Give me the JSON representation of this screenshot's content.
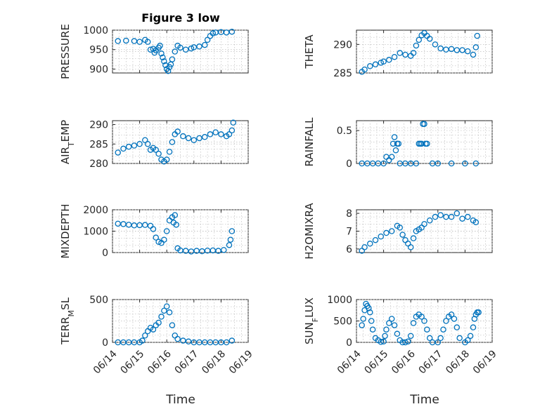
{
  "title": "Figure 3 low",
  "marker_color": "#0072BD",
  "xlabel": "Time",
  "x_ticks": [
    "06/14",
    "06/15",
    "06/16",
    "06/17",
    "06/18",
    "06/19"
  ],
  "chart_data": [
    {
      "type": "scatter",
      "ylabel": "PRESSURE",
      "ylim": [
        890,
        1000
      ],
      "yticks": [
        "900",
        "950",
        "1000"
      ],
      "ytick_values": [
        900,
        950,
        1000
      ],
      "grid": true,
      "x_unit": "days since 06/14",
      "x": [
        0.2,
        0.5,
        0.8,
        1.0,
        1.2,
        1.3,
        1.4,
        1.5,
        1.55,
        1.6,
        1.7,
        1.75,
        1.8,
        1.85,
        1.9,
        1.95,
        2.0,
        2.05,
        2.1,
        2.15,
        2.2,
        2.3,
        2.4,
        2.5,
        2.7,
        2.9,
        3.0,
        3.2,
        3.4,
        3.5,
        3.6,
        3.7,
        3.8,
        4.0,
        4.2,
        4.4
      ],
      "y": [
        972,
        973,
        972,
        970,
        975,
        970,
        950,
        952,
        942,
        948,
        955,
        960,
        940,
        930,
        920,
        910,
        900,
        895,
        905,
        912,
        925,
        945,
        960,
        955,
        950,
        953,
        956,
        958,
        962,
        975,
        985,
        992,
        994,
        995,
        994,
        996
      ]
    },
    {
      "type": "scatter",
      "ylabel": "THETA",
      "ylim": [
        285,
        292.5
      ],
      "yticks": [
        "285",
        "290"
      ],
      "ytick_values": [
        285,
        290
      ],
      "grid": true,
      "x": [
        0.2,
        0.3,
        0.5,
        0.7,
        0.9,
        1.0,
        1.2,
        1.4,
        1.6,
        1.8,
        2.0,
        2.1,
        2.2,
        2.3,
        2.4,
        2.5,
        2.6,
        2.7,
        2.9,
        3.1,
        3.3,
        3.5,
        3.7,
        3.9,
        4.1,
        4.3,
        4.4,
        4.45
      ],
      "y": [
        285.2,
        285.6,
        286.2,
        286.5,
        286.8,
        287.0,
        287.3,
        287.8,
        288.5,
        288.2,
        288.0,
        288.5,
        289.8,
        290.8,
        291.6,
        292.0,
        291.5,
        291.0,
        290.0,
        289.3,
        289.1,
        289.2,
        289.0,
        289.0,
        288.8,
        288.2,
        289.5,
        291.5
      ]
    },
    {
      "type": "scatter",
      "ylabel": "AIR_TEMP",
      "ylim": [
        280,
        291
      ],
      "yticks": [
        "280",
        "285",
        "290"
      ],
      "ytick_values": [
        280,
        285,
        290
      ],
      "grid": true,
      "x": [
        0.2,
        0.4,
        0.6,
        0.8,
        1.0,
        1.2,
        1.3,
        1.4,
        1.5,
        1.6,
        1.7,
        1.8,
        1.9,
        2.0,
        2.1,
        2.2,
        2.3,
        2.4,
        2.6,
        2.8,
        3.0,
        3.2,
        3.4,
        3.6,
        3.8,
        4.0,
        4.2,
        4.3,
        4.4,
        4.45
      ],
      "y": [
        282.8,
        283.8,
        284.3,
        284.6,
        285.0,
        286.0,
        285.0,
        283.5,
        284.0,
        283.5,
        282.5,
        281.0,
        280.5,
        281.0,
        283.0,
        285.5,
        287.5,
        288.2,
        287.0,
        286.5,
        286.0,
        286.5,
        286.8,
        287.5,
        288.0,
        287.5,
        287.0,
        287.5,
        288.5,
        290.5
      ]
    },
    {
      "type": "scatter",
      "ylabel": "RAINFALL",
      "ylim": [
        0,
        0.65
      ],
      "yticks": [
        "0",
        "0.5"
      ],
      "ytick_values": [
        0,
        0.5
      ],
      "grid": true,
      "x": [
        0.2,
        0.4,
        0.6,
        0.8,
        1.0,
        1.1,
        1.2,
        1.3,
        1.35,
        1.4,
        1.45,
        1.5,
        1.55,
        1.6,
        1.8,
        2.0,
        2.2,
        2.3,
        2.35,
        2.4,
        2.45,
        2.5,
        2.55,
        2.6,
        2.8,
        3.0,
        3.5,
        4.0,
        4.4
      ],
      "y": [
        0,
        0,
        0,
        0,
        0,
        0.1,
        0.05,
        0.1,
        0.3,
        0.4,
        0.2,
        0.3,
        0.3,
        0,
        0,
        0,
        0,
        0.3,
        0.3,
        0.3,
        0.6,
        0.6,
        0.3,
        0.3,
        0,
        0,
        0,
        0,
        0
      ]
    },
    {
      "type": "scatter",
      "ylabel": "MIXDEPTH",
      "ylim": [
        0,
        2000
      ],
      "yticks": [
        "0",
        "1000",
        "2000"
      ],
      "ytick_values": [
        0,
        1000,
        2000
      ],
      "grid": true,
      "x": [
        0.2,
        0.4,
        0.6,
        0.8,
        1.0,
        1.2,
        1.4,
        1.5,
        1.6,
        1.7,
        1.8,
        1.9,
        2.0,
        2.1,
        2.2,
        2.25,
        2.3,
        2.35,
        2.4,
        2.5,
        2.7,
        2.9,
        3.1,
        3.3,
        3.5,
        3.7,
        3.9,
        4.1,
        4.3,
        4.35,
        4.4
      ],
      "y": [
        1350,
        1330,
        1300,
        1270,
        1280,
        1290,
        1250,
        1100,
        700,
        500,
        450,
        600,
        1000,
        1500,
        1650,
        1400,
        1750,
        1300,
        200,
        100,
        80,
        50,
        80,
        60,
        90,
        100,
        80,
        120,
        350,
        600,
        1000
      ]
    },
    {
      "type": "scatter",
      "ylabel": "H2OMIXRA",
      "ylim": [
        5.8,
        8.2
      ],
      "yticks": [
        "6",
        "7",
        "8"
      ],
      "ytick_values": [
        6,
        7,
        8
      ],
      "grid": true,
      "x": [
        0.2,
        0.3,
        0.5,
        0.7,
        0.9,
        1.1,
        1.3,
        1.5,
        1.6,
        1.7,
        1.8,
        1.9,
        2.0,
        2.1,
        2.2,
        2.3,
        2.4,
        2.5,
        2.7,
        2.9,
        3.1,
        3.3,
        3.5,
        3.7,
        3.9,
        4.1,
        4.3,
        4.4
      ],
      "y": [
        5.9,
        6.1,
        6.3,
        6.5,
        6.7,
        6.9,
        7.0,
        7.3,
        7.2,
        6.8,
        6.5,
        6.3,
        6.1,
        6.6,
        7.0,
        7.1,
        7.2,
        7.4,
        7.6,
        7.8,
        7.9,
        7.8,
        7.8,
        8.0,
        7.7,
        7.8,
        7.6,
        7.5
      ]
    },
    {
      "type": "scatter",
      "ylabel": "TERR_MSL",
      "ylim": [
        0,
        500
      ],
      "yticks": [
        "0",
        "500"
      ],
      "ytick_values": [
        0,
        500
      ],
      "grid": true,
      "x": [
        0.2,
        0.4,
        0.6,
        0.8,
        1.0,
        1.1,
        1.2,
        1.3,
        1.4,
        1.5,
        1.6,
        1.7,
        1.8,
        1.9,
        2.0,
        2.1,
        2.2,
        2.3,
        2.4,
        2.6,
        2.8,
        3.0,
        3.2,
        3.4,
        3.6,
        3.8,
        4.0,
        4.2,
        4.4
      ],
      "y": [
        0,
        0,
        0,
        0,
        0,
        20,
        80,
        130,
        170,
        150,
        200,
        230,
        300,
        370,
        420,
        350,
        200,
        80,
        40,
        20,
        10,
        0,
        0,
        0,
        0,
        0,
        0,
        0,
        20
      ]
    },
    {
      "type": "scatter",
      "ylabel": "SUN_FLUX",
      "ylim": [
        0,
        1000
      ],
      "yticks": [
        "0",
        "500",
        "1000"
      ],
      "ytick_values": [
        0,
        500,
        1000
      ],
      "grid": true,
      "x": [
        0.2,
        0.25,
        0.3,
        0.35,
        0.4,
        0.45,
        0.5,
        0.55,
        0.6,
        0.7,
        0.8,
        0.9,
        1.0,
        1.05,
        1.1,
        1.2,
        1.3,
        1.4,
        1.5,
        1.6,
        1.7,
        1.8,
        1.9,
        2.0,
        2.1,
        2.2,
        2.3,
        2.4,
        2.5,
        2.6,
        2.7,
        2.8,
        3.0,
        3.1,
        3.2,
        3.3,
        3.4,
        3.5,
        3.6,
        3.7,
        3.8,
        4.0,
        4.1,
        4.2,
        4.3,
        4.35,
        4.4,
        4.45,
        4.5
      ],
      "y": [
        400,
        550,
        750,
        900,
        850,
        800,
        700,
        500,
        300,
        100,
        50,
        10,
        20,
        150,
        300,
        450,
        550,
        400,
        200,
        50,
        0,
        0,
        20,
        150,
        450,
        600,
        650,
        600,
        500,
        300,
        100,
        0,
        0,
        100,
        300,
        500,
        600,
        650,
        550,
        350,
        100,
        0,
        50,
        150,
        350,
        550,
        650,
        700,
        700
      ]
    }
  ]
}
